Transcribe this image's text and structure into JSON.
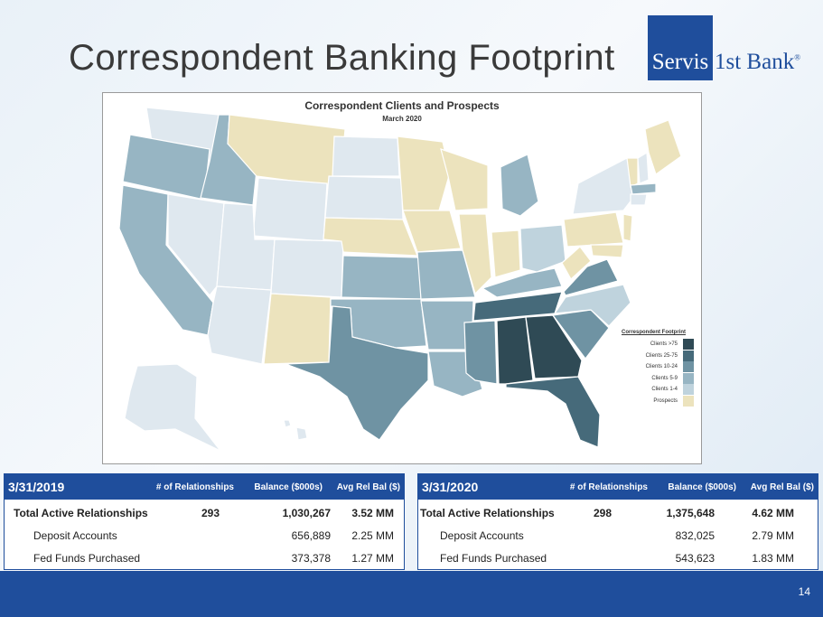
{
  "slide": {
    "title": "Correspondent Banking Footprint",
    "page_number": "14"
  },
  "logo": {
    "part1": "Servis",
    "part2": "1st Bank",
    "reg": "®"
  },
  "map": {
    "title": "Correspondent Clients and Prospects",
    "subtitle": "March 2020",
    "legend_title": "Correspondent Footprint",
    "legend": [
      {
        "label": "Clients >75",
        "color": "#2f4a55"
      },
      {
        "label": "Clients 25-75",
        "color": "#466a7a"
      },
      {
        "label": "Clients 10-24",
        "color": "#6f93a3"
      },
      {
        "label": "Clients 5-9",
        "color": "#97b5c3"
      },
      {
        "label": "Clients 1-4",
        "color": "#bfd3dd"
      },
      {
        "label": "Prospects",
        "color": "#ece3bd"
      }
    ]
  },
  "table_2019": {
    "date": "3/31/2019",
    "headers": [
      "# of Relationships",
      "Balance ($000s)",
      "Avg Rel Bal ($)"
    ],
    "rows": [
      {
        "label": "Total Active Relationships",
        "relationships": "293",
        "balance": "1,030,267",
        "avg": "3.52 MM"
      },
      {
        "label": "Deposit Accounts",
        "relationships": "",
        "balance": "656,889",
        "avg": "2.25 MM"
      },
      {
        "label": "Fed Funds Purchased",
        "relationships": "",
        "balance": "373,378",
        "avg": "1.27 MM"
      }
    ]
  },
  "table_2020": {
    "date": "3/31/2020",
    "headers": [
      "# of Relationships",
      "Balance ($000s)",
      "Avg Rel Bal ($)"
    ],
    "rows": [
      {
        "label": "Total Active Relationships",
        "relationships": "298",
        "balance": "1,375,648",
        "avg": "4.62 MM"
      },
      {
        "label": "Deposit Accounts",
        "relationships": "",
        "balance": "832,025",
        "avg": "2.79 MM"
      },
      {
        "label": "Fed Funds Purchased",
        "relationships": "",
        "balance": "543,623",
        "avg": "1.83 MM"
      }
    ]
  }
}
